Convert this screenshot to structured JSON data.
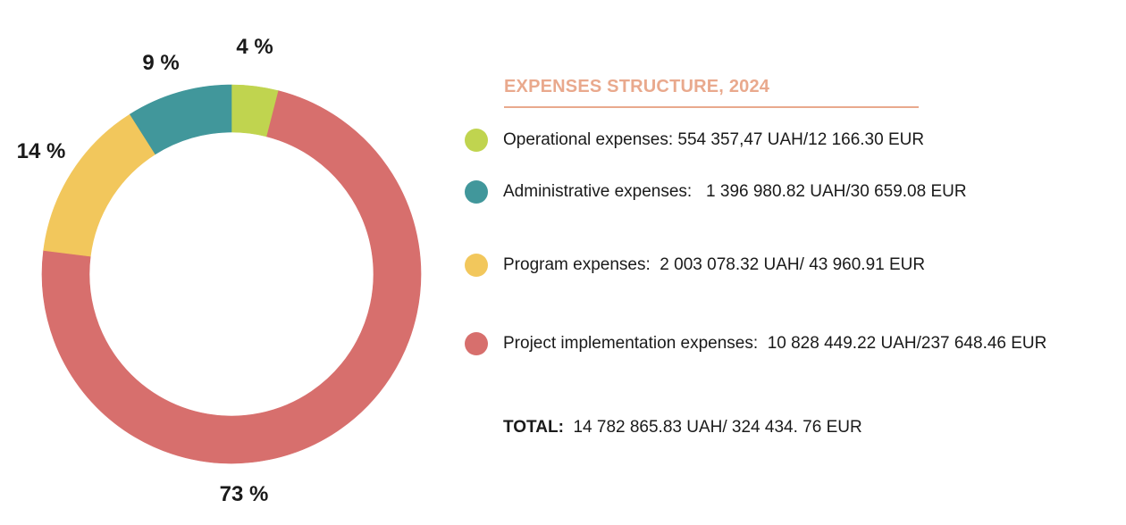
{
  "chart_data": {
    "type": "pie",
    "donut": true,
    "title": "EXPENSES STRUCTURE, 2024",
    "slices": [
      {
        "legend": "Operational expenses: 554 357,47 UAH/12 166.30 EUR",
        "value": 4,
        "label": "4 %",
        "color": "#c0d44f"
      },
      {
        "legend": "Administrative expenses:   1 396 980.82 UAH/30 659.08 EUR",
        "value": 9,
        "label": "9 %",
        "color": "#41979b"
      },
      {
        "legend": "Program expenses:  2 003 078.32 UAH/ 43 960.91 EUR",
        "value": 14,
        "label": "14 %",
        "color": "#f2c75c"
      },
      {
        "legend": "Project implementation expenses:  10 828 449.22 UAH/237 648.46 EUR",
        "value": 73,
        "label": "73 %",
        "color": "#d76f6d"
      }
    ],
    "total": {
      "label": "TOTAL:",
      "value": "14 782 865.83 UAH/ 324 434. 76 EUR"
    },
    "title_color": "#e9a98d"
  }
}
